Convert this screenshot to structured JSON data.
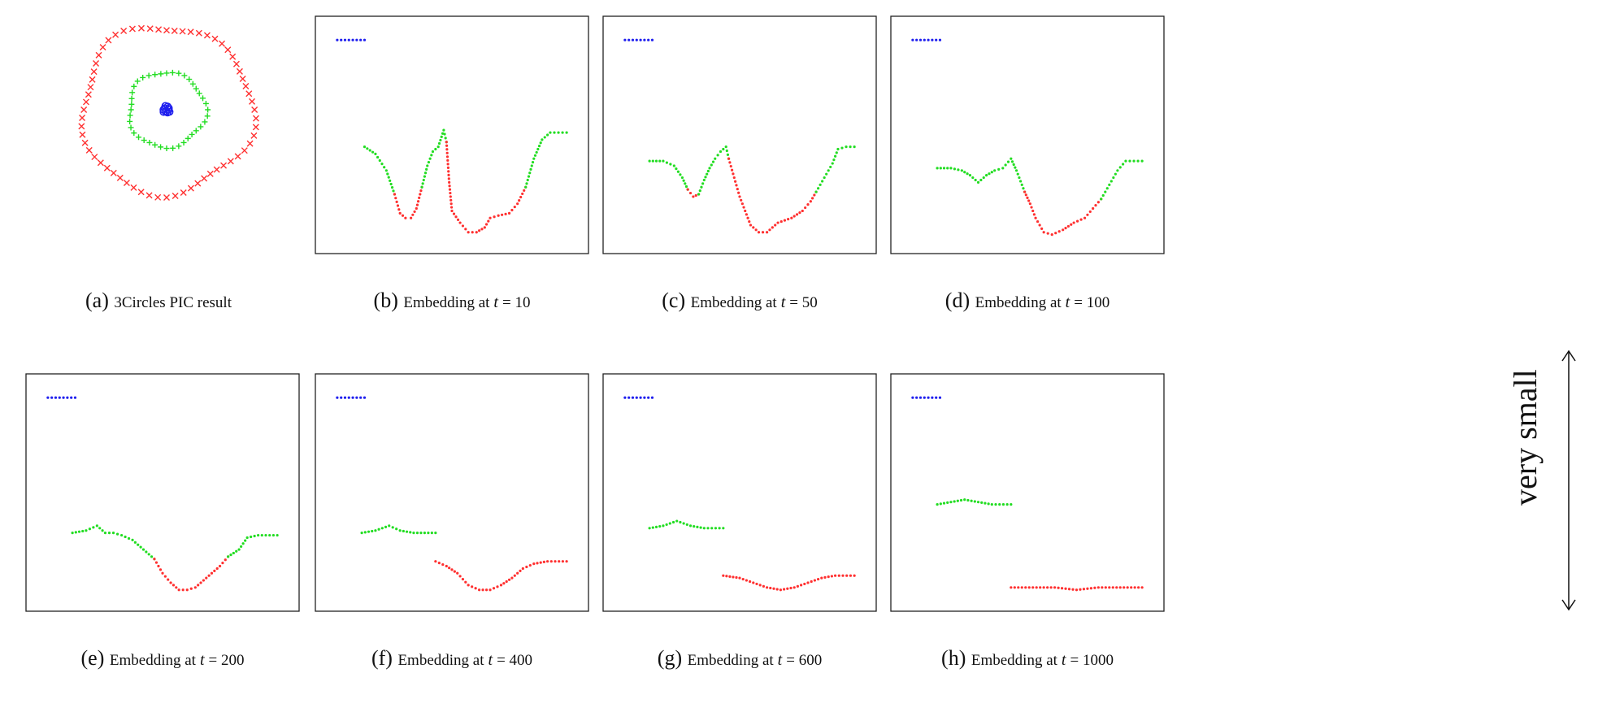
{
  "figure": {
    "side_label": "very small"
  },
  "chart_data": [
    {
      "type": "scatter",
      "id": "a",
      "caption_letter": "(a)",
      "caption_text": "3Circles PIC result",
      "caption_var": "",
      "caption_value": "",
      "series": [
        {
          "name": "",
          "color": "#ff3030",
          "marker": "x",
          "shape": "ring",
          "radius": 1.0,
          "count": 64
        },
        {
          "name": "",
          "color": "#22dd22",
          "marker": "+",
          "shape": "ring",
          "radius": 0.45,
          "count": 40
        },
        {
          "name": "",
          "color": "#2020ee",
          "marker": "o",
          "shape": "blob",
          "radius": 0.05,
          "count": 10
        }
      ]
    },
    {
      "type": "scatter",
      "id": "b",
      "caption_letter": "(b)",
      "caption_text": "Embedding at",
      "caption_var": "t",
      "caption_value": "= 10",
      "ylim": [
        0,
        1
      ],
      "series": [
        {
          "name": "",
          "color": "#2020ee",
          "points": [
            [
              0.08,
              0.9
            ],
            [
              0.18,
              0.9
            ]
          ]
        },
        {
          "name": "",
          "color": "#22dd22",
          "points": [
            [
              0.18,
              0.45
            ],
            [
              0.22,
              0.42
            ],
            [
              0.26,
              0.35
            ],
            [
              0.29,
              0.25
            ]
          ]
        },
        {
          "name": "",
          "color": "#ff3030",
          "points": [
            [
              0.29,
              0.25
            ],
            [
              0.31,
              0.17
            ],
            [
              0.33,
              0.15
            ],
            [
              0.35,
              0.15
            ],
            [
              0.37,
              0.19
            ],
            [
              0.39,
              0.28
            ]
          ]
        },
        {
          "name": "",
          "color": "#22dd22",
          "points": [
            [
              0.39,
              0.28
            ],
            [
              0.41,
              0.37
            ],
            [
              0.43,
              0.43
            ],
            [
              0.45,
              0.45
            ],
            [
              0.47,
              0.52
            ],
            [
              0.48,
              0.47
            ]
          ]
        },
        {
          "name": "",
          "color": "#ff3030",
          "points": [
            [
              0.48,
              0.47
            ],
            [
              0.49,
              0.3
            ],
            [
              0.5,
              0.18
            ],
            [
              0.53,
              0.13
            ],
            [
              0.56,
              0.09
            ],
            [
              0.59,
              0.09
            ],
            [
              0.62,
              0.11
            ],
            [
              0.64,
              0.15
            ],
            [
              0.67,
              0.16
            ],
            [
              0.71,
              0.17
            ],
            [
              0.74,
              0.21
            ],
            [
              0.77,
              0.28
            ]
          ]
        },
        {
          "name": "",
          "color": "#22dd22",
          "points": [
            [
              0.77,
              0.28
            ],
            [
              0.8,
              0.4
            ],
            [
              0.83,
              0.48
            ],
            [
              0.86,
              0.51
            ],
            [
              0.92,
              0.51
            ]
          ]
        }
      ]
    },
    {
      "type": "scatter",
      "id": "c",
      "caption_letter": "(c)",
      "caption_text": "Embedding at",
      "caption_var": "t",
      "caption_value": "= 50",
      "ylim": [
        0,
        1
      ],
      "series": [
        {
          "name": "",
          "color": "#2020ee",
          "points": [
            [
              0.08,
              0.9
            ],
            [
              0.18,
              0.9
            ]
          ]
        },
        {
          "name": "",
          "color": "#22dd22",
          "points": [
            [
              0.17,
              0.39
            ],
            [
              0.22,
              0.39
            ],
            [
              0.26,
              0.37
            ],
            [
              0.29,
              0.32
            ],
            [
              0.31,
              0.27
            ]
          ]
        },
        {
          "name": "",
          "color": "#ff3030",
          "points": [
            [
              0.31,
              0.27
            ],
            [
              0.33,
              0.24
            ],
            [
              0.35,
              0.25
            ]
          ]
        },
        {
          "name": "",
          "color": "#22dd22",
          "points": [
            [
              0.35,
              0.25
            ],
            [
              0.37,
              0.31
            ],
            [
              0.39,
              0.36
            ],
            [
              0.41,
              0.4
            ],
            [
              0.43,
              0.43
            ],
            [
              0.45,
              0.45
            ],
            [
              0.46,
              0.4
            ]
          ]
        },
        {
          "name": "",
          "color": "#ff3030",
          "points": [
            [
              0.46,
              0.4
            ],
            [
              0.48,
              0.32
            ],
            [
              0.5,
              0.24
            ],
            [
              0.52,
              0.18
            ],
            [
              0.54,
              0.12
            ],
            [
              0.57,
              0.09
            ],
            [
              0.6,
              0.09
            ],
            [
              0.64,
              0.13
            ],
            [
              0.69,
              0.15
            ],
            [
              0.73,
              0.18
            ],
            [
              0.76,
              0.22
            ],
            [
              0.78,
              0.26
            ]
          ]
        },
        {
          "name": "",
          "color": "#22dd22",
          "points": [
            [
              0.78,
              0.26
            ],
            [
              0.81,
              0.32
            ],
            [
              0.84,
              0.38
            ],
            [
              0.86,
              0.44
            ],
            [
              0.89,
              0.45
            ],
            [
              0.92,
              0.45
            ]
          ]
        }
      ]
    },
    {
      "type": "scatter",
      "id": "d",
      "caption_letter": "(d)",
      "caption_text": "Embedding at",
      "caption_var": "t",
      "caption_value": "= 100",
      "ylim": [
        0,
        1
      ],
      "series": [
        {
          "name": "",
          "color": "#2020ee",
          "points": [
            [
              0.08,
              0.9
            ],
            [
              0.18,
              0.9
            ]
          ]
        },
        {
          "name": "",
          "color": "#22dd22",
          "points": [
            [
              0.17,
              0.36
            ],
            [
              0.22,
              0.36
            ],
            [
              0.26,
              0.35
            ],
            [
              0.29,
              0.33
            ],
            [
              0.32,
              0.3
            ],
            [
              0.35,
              0.33
            ],
            [
              0.38,
              0.35
            ],
            [
              0.41,
              0.36
            ],
            [
              0.44,
              0.4
            ],
            [
              0.46,
              0.35
            ],
            [
              0.49,
              0.26
            ]
          ]
        },
        {
          "name": "",
          "color": "#ff3030",
          "points": [
            [
              0.49,
              0.26
            ],
            [
              0.51,
              0.21
            ],
            [
              0.53,
              0.15
            ],
            [
              0.56,
              0.09
            ],
            [
              0.59,
              0.08
            ],
            [
              0.63,
              0.1
            ],
            [
              0.67,
              0.13
            ],
            [
              0.71,
              0.15
            ],
            [
              0.74,
              0.19
            ],
            [
              0.77,
              0.23
            ]
          ]
        },
        {
          "name": "",
          "color": "#22dd22",
          "points": [
            [
              0.77,
              0.23
            ],
            [
              0.8,
              0.29
            ],
            [
              0.83,
              0.35
            ],
            [
              0.86,
              0.39
            ],
            [
              0.92,
              0.39
            ]
          ]
        }
      ]
    },
    {
      "type": "scatter",
      "id": "e",
      "caption_letter": "(e)",
      "caption_text": "Embedding at",
      "caption_var": "t",
      "caption_value": "= 200",
      "ylim": [
        0,
        1
      ],
      "series": [
        {
          "name": "",
          "color": "#2020ee",
          "points": [
            [
              0.08,
              0.9
            ],
            [
              0.18,
              0.9
            ]
          ]
        },
        {
          "name": "",
          "color": "#22dd22",
          "points": [
            [
              0.17,
              0.33
            ],
            [
              0.22,
              0.34
            ],
            [
              0.26,
              0.36
            ],
            [
              0.29,
              0.33
            ],
            [
              0.32,
              0.33
            ],
            [
              0.35,
              0.32
            ],
            [
              0.39,
              0.3
            ],
            [
              0.43,
              0.26
            ],
            [
              0.47,
              0.22
            ]
          ]
        },
        {
          "name": "",
          "color": "#ff3030",
          "points": [
            [
              0.47,
              0.22
            ],
            [
              0.5,
              0.16
            ],
            [
              0.53,
              0.12
            ],
            [
              0.56,
              0.09
            ],
            [
              0.59,
              0.09
            ],
            [
              0.62,
              0.1
            ],
            [
              0.65,
              0.13
            ],
            [
              0.68,
              0.16
            ],
            [
              0.71,
              0.19
            ],
            [
              0.74,
              0.23
            ]
          ]
        },
        {
          "name": "",
          "color": "#22dd22",
          "points": [
            [
              0.74,
              0.23
            ],
            [
              0.78,
              0.26
            ],
            [
              0.81,
              0.31
            ],
            [
              0.85,
              0.32
            ],
            [
              0.92,
              0.32
            ]
          ]
        }
      ]
    },
    {
      "type": "scatter",
      "id": "f",
      "caption_letter": "(f)",
      "caption_text": "Embedding at",
      "caption_var": "t",
      "caption_value": "= 400",
      "ylim": [
        0,
        1
      ],
      "series": [
        {
          "name": "",
          "color": "#2020ee",
          "points": [
            [
              0.08,
              0.9
            ],
            [
              0.18,
              0.9
            ]
          ]
        },
        {
          "name": "",
          "color": "#22dd22",
          "points": [
            [
              0.17,
              0.33
            ],
            [
              0.22,
              0.34
            ],
            [
              0.27,
              0.36
            ],
            [
              0.31,
              0.34
            ],
            [
              0.36,
              0.33
            ],
            [
              0.44,
              0.33
            ]
          ]
        },
        {
          "name": "",
          "color": "#ff3030",
          "points": [
            [
              0.44,
              0.21
            ],
            [
              0.48,
              0.19
            ],
            [
              0.52,
              0.16
            ],
            [
              0.56,
              0.11
            ],
            [
              0.6,
              0.09
            ],
            [
              0.64,
              0.09
            ],
            [
              0.68,
              0.11
            ],
            [
              0.72,
              0.14
            ],
            [
              0.76,
              0.18
            ],
            [
              0.8,
              0.2
            ],
            [
              0.85,
              0.21
            ],
            [
              0.92,
              0.21
            ]
          ]
        }
      ]
    },
    {
      "type": "scatter",
      "id": "g",
      "caption_letter": "(g)",
      "caption_text": "Embedding at",
      "caption_var": "t",
      "caption_value": "= 600",
      "ylim": [
        0,
        1
      ],
      "series": [
        {
          "name": "",
          "color": "#2020ee",
          "points": [
            [
              0.08,
              0.9
            ],
            [
              0.18,
              0.9
            ]
          ]
        },
        {
          "name": "",
          "color": "#22dd22",
          "points": [
            [
              0.17,
              0.35
            ],
            [
              0.22,
              0.36
            ],
            [
              0.27,
              0.38
            ],
            [
              0.32,
              0.36
            ],
            [
              0.37,
              0.35
            ],
            [
              0.44,
              0.35
            ]
          ]
        },
        {
          "name": "",
          "color": "#ff3030",
          "points": [
            [
              0.44,
              0.15
            ],
            [
              0.5,
              0.14
            ],
            [
              0.55,
              0.12
            ],
            [
              0.6,
              0.1
            ],
            [
              0.65,
              0.09
            ],
            [
              0.7,
              0.1
            ],
            [
              0.75,
              0.12
            ],
            [
              0.8,
              0.14
            ],
            [
              0.85,
              0.15
            ],
            [
              0.92,
              0.15
            ]
          ]
        }
      ]
    },
    {
      "type": "scatter",
      "id": "h",
      "caption_letter": "(h)",
      "caption_text": "Embedding at",
      "caption_var": "t",
      "caption_value": "= 1000",
      "ylim": [
        0,
        1
      ],
      "series": [
        {
          "name": "",
          "color": "#2020ee",
          "points": [
            [
              0.08,
              0.9
            ],
            [
              0.18,
              0.9
            ]
          ]
        },
        {
          "name": "",
          "color": "#22dd22",
          "points": [
            [
              0.17,
              0.45
            ],
            [
              0.22,
              0.46
            ],
            [
              0.27,
              0.47
            ],
            [
              0.32,
              0.46
            ],
            [
              0.37,
              0.45
            ],
            [
              0.44,
              0.45
            ]
          ]
        },
        {
          "name": "",
          "color": "#ff3030",
          "points": [
            [
              0.44,
              0.1
            ],
            [
              0.52,
              0.1
            ],
            [
              0.6,
              0.1
            ],
            [
              0.68,
              0.09
            ],
            [
              0.76,
              0.1
            ],
            [
              0.84,
              0.1
            ],
            [
              0.92,
              0.1
            ]
          ]
        }
      ]
    }
  ]
}
